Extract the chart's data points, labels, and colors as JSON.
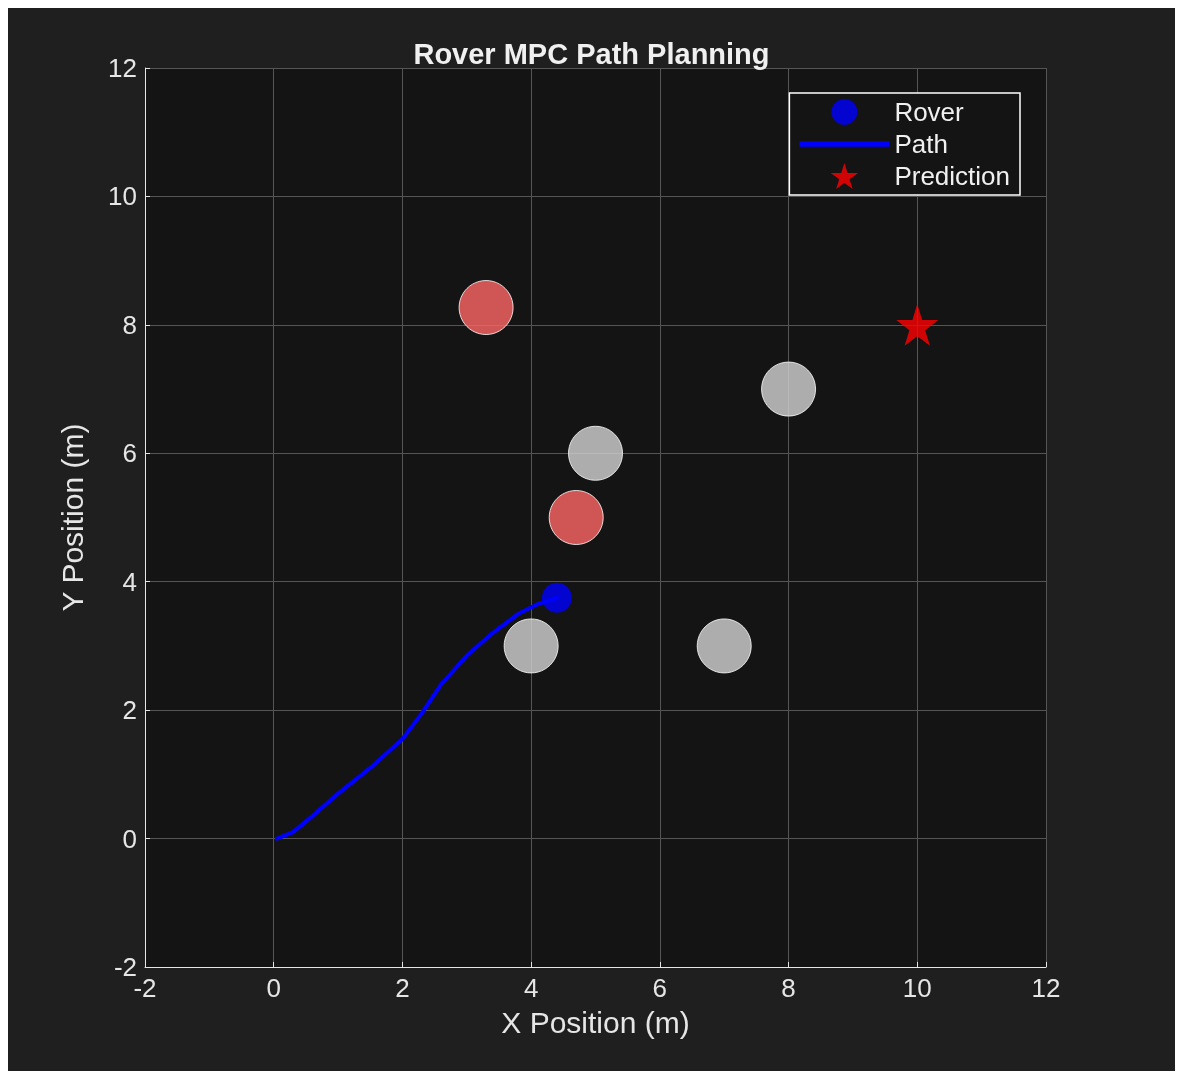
{
  "chart_data": {
    "type": "scatter",
    "title": "Rover MPC Path Planning",
    "xlabel": "X Position (m)",
    "ylabel": "Y Position (m)",
    "xlim": [
      -2,
      12
    ],
    "ylim": [
      -2,
      12
    ],
    "xticks": [
      -2,
      0,
      2,
      4,
      6,
      8,
      10,
      12
    ],
    "yticks": [
      -2,
      0,
      2,
      4,
      6,
      8,
      10,
      12
    ],
    "grid": true,
    "legend": "top right",
    "series": [
      {
        "type": "bubble",
        "color": "#d3d3d3",
        "x": [
          4,
          7,
          5,
          8
        ],
        "values": [
          3,
          3,
          6,
          7
        ],
        "sizes": [
          1,
          1,
          1,
          1
        ]
      },
      {
        "type": "bubble",
        "color": "#ff6666",
        "x": [
          3.3,
          4.7
        ],
        "values": [
          8.27,
          5
        ],
        "sizes": [
          1,
          1
        ]
      },
      {
        "name": "Rover",
        "color": "#0000ff",
        "marker": "circle",
        "x": [
          4.4
        ],
        "values": [
          3.75
        ]
      },
      {
        "type": "line",
        "name": "Path",
        "color": "#0000ff",
        "line_style": "solid",
        "marker": "none",
        "x": [
          0.05,
          0.3,
          0.6,
          1,
          1.5,
          2,
          2.3,
          2.6,
          3,
          3.4,
          3.8,
          4.1,
          4.4
        ],
        "values": [
          0,
          0.1,
          0.35,
          0.7,
          1.1,
          1.55,
          1.95,
          2.4,
          2.85,
          3.2,
          3.5,
          3.65,
          3.75
        ]
      },
      {
        "name": "Prediction",
        "color": "#ff0000",
        "marker": "star",
        "x": [
          10
        ],
        "values": [
          8
        ]
      }
    ]
  }
}
